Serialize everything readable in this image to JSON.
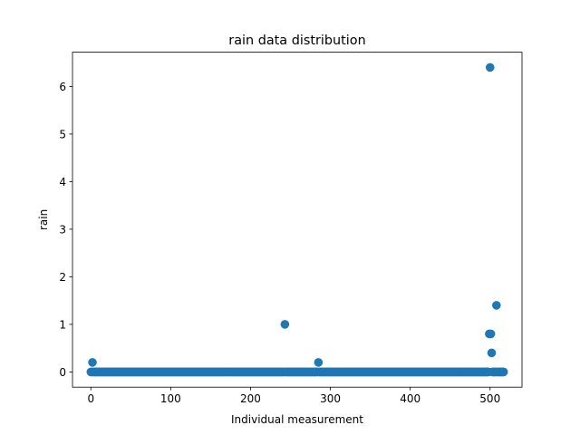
{
  "chart_data": {
    "type": "scatter",
    "title": "rain data distribution",
    "xlabel": "Individual measurement",
    "ylabel": "rain",
    "xlim": [
      -23,
      540
    ],
    "ylim": [
      -0.32,
      6.72
    ],
    "x_ticks": [
      0,
      100,
      200,
      300,
      400,
      500
    ],
    "y_ticks": [
      0,
      1,
      2,
      3,
      4,
      5,
      6
    ],
    "x_tick_labels": [
      "0",
      "100",
      "200",
      "300",
      "400",
      "500"
    ],
    "y_tick_labels": [
      "0",
      "1",
      "2",
      "3",
      "4",
      "5",
      "6"
    ],
    "grid": false,
    "legend": "none",
    "marker_color": "#1f77b4",
    "points": {
      "baseline": {
        "x_from": 0,
        "x_to": 517,
        "y": 0
      },
      "nonzero": [
        {
          "x": 2,
          "y": 0.2
        },
        {
          "x": 243,
          "y": 1.0
        },
        {
          "x": 285,
          "y": 0.2
        },
        {
          "x": 499,
          "y": 0.8
        },
        {
          "x": 500,
          "y": 6.4
        },
        {
          "x": 501,
          "y": 0.8
        },
        {
          "x": 502,
          "y": 0.4
        },
        {
          "x": 508,
          "y": 1.4
        }
      ]
    }
  }
}
